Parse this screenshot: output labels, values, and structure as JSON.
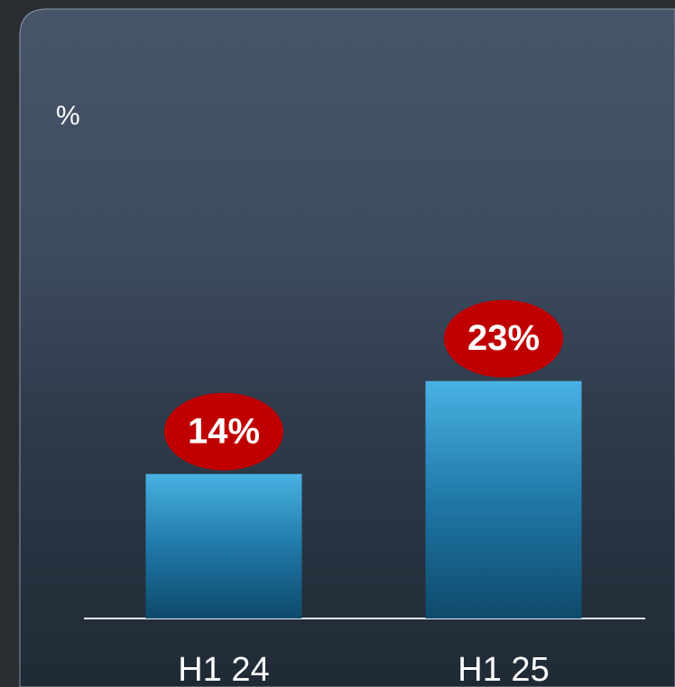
{
  "chart_data": {
    "type": "bar",
    "y_label": "%",
    "categories": [
      "H1 24",
      "H1 25"
    ],
    "values": [
      14,
      23
    ],
    "value_labels": [
      "14%",
      "23%"
    ],
    "color": "#2a8fc4",
    "label_color": "#c00000"
  }
}
